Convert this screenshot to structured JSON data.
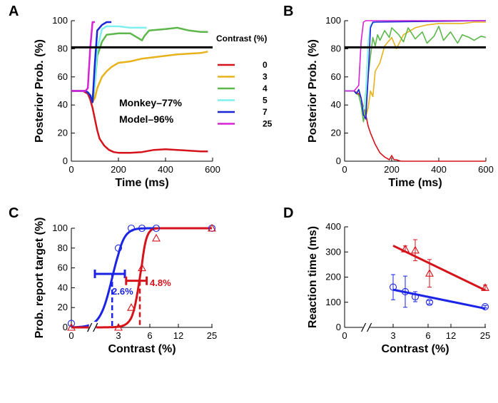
{
  "figure": {
    "colors": {
      "c0": "#d6131b",
      "c3": "#e8b21b",
      "c4": "#5cb84a",
      "c5": "#7ff0f0",
      "c7": "#1b24d6",
      "c25": "#d623d6",
      "threshold": "#000000",
      "fitB": "#1b24e6",
      "fitR": "#d6131b"
    }
  },
  "chart_data": [
    {
      "panel": "A",
      "type": "line",
      "xlabel": "Time (ms)",
      "ylabel": "Posterior Prob. (%)",
      "xlim": [
        0,
        600
      ],
      "ylim": [
        0,
        100
      ],
      "xticks": [
        "0",
        "200",
        "400",
        "600"
      ],
      "yticks": [
        "0",
        "20",
        "40",
        "60",
        "80",
        "100"
      ],
      "threshold": 81,
      "legend_title": "Contrast (%)",
      "annotations": [
        "Monkey–77%",
        "Model–96%"
      ],
      "series": [
        {
          "name": "0",
          "color_key": "c0",
          "x": [
            0,
            50,
            60,
            70,
            80,
            90,
            100,
            110,
            120,
            140,
            160,
            180,
            200,
            250,
            300,
            350,
            400,
            450,
            500,
            550,
            580
          ],
          "y": [
            50,
            50,
            49,
            48,
            44,
            38,
            30,
            22,
            16,
            11,
            8,
            6.5,
            6,
            6,
            6.5,
            8,
            8.5,
            8,
            7.5,
            7,
            7
          ]
        },
        {
          "name": "3",
          "color_key": "c3",
          "x": [
            0,
            60,
            70,
            80,
            90,
            100,
            110,
            130,
            150,
            170,
            200,
            250,
            300,
            350,
            400,
            450,
            500,
            550,
            580
          ],
          "y": [
            50,
            50,
            49,
            47,
            42,
            45,
            52,
            60,
            64,
            67,
            70,
            71,
            73,
            74,
            75,
            76,
            76.5,
            77,
            78
          ]
        },
        {
          "name": "4",
          "color_key": "c4",
          "x": [
            0,
            60,
            70,
            80,
            90,
            100,
            110,
            130,
            150,
            200,
            250,
            300,
            310,
            330,
            400,
            450,
            500,
            550,
            580
          ],
          "y": [
            50,
            50,
            49,
            47,
            42,
            55,
            75,
            85,
            90,
            91,
            91,
            86,
            89,
            93,
            94,
            95,
            93,
            92,
            92
          ]
        },
        {
          "name": "5",
          "color_key": "c5",
          "x": [
            0,
            60,
            70,
            80,
            90,
            100,
            110,
            130,
            150,
            200,
            250,
            300,
            320
          ],
          "y": [
            50,
            50,
            49,
            47,
            45,
            55,
            80,
            94,
            96,
            96,
            95,
            95,
            95
          ]
        },
        {
          "name": "7",
          "color_key": "c7",
          "x": [
            0,
            60,
            70,
            80,
            90,
            100,
            110,
            130,
            150,
            170
          ],
          "y": [
            50,
            50,
            49,
            47,
            42,
            70,
            93,
            97,
            99,
            99
          ]
        },
        {
          "name": "25",
          "color_key": "c25",
          "x": [
            0,
            50,
            60,
            70,
            80,
            90,
            100
          ],
          "y": [
            50,
            50,
            50,
            52,
            80,
            99,
            99
          ]
        }
      ]
    },
    {
      "panel": "B",
      "type": "line",
      "xlabel": "Time (ms)",
      "ylabel": "Posterior Prob. (%)",
      "xlim": [
        0,
        600
      ],
      "ylim": [
        0,
        100
      ],
      "xticks": [
        "0",
        "200",
        "400",
        "600"
      ],
      "yticks": [
        "0",
        "20",
        "40",
        "60",
        "80",
        "100"
      ],
      "threshold": 81,
      "series": [
        {
          "name": "0",
          "color_key": "c0",
          "x": [
            0,
            40,
            50,
            60,
            70,
            80,
            90,
            100,
            110,
            130,
            150,
            170,
            180,
            190,
            200,
            210,
            220,
            240,
            300,
            400,
            500,
            600
          ],
          "y": [
            50,
            50,
            49,
            48,
            45,
            38,
            33,
            25,
            20,
            12,
            6,
            3,
            2,
            1,
            4,
            1,
            1,
            0,
            0,
            0,
            0,
            0
          ]
        },
        {
          "name": "3",
          "color_key": "c3",
          "x": [
            0,
            40,
            50,
            60,
            70,
            80,
            90,
            100,
            110,
            120,
            130,
            150,
            170,
            200,
            220,
            250,
            280,
            300,
            350,
            400,
            450,
            500,
            550,
            600
          ],
          "y": [
            50,
            50,
            48,
            51,
            45,
            36,
            32,
            38,
            50,
            46,
            64,
            70,
            82,
            88,
            80,
            90,
            93,
            95,
            97,
            98,
            98,
            98,
            99,
            99
          ]
        },
        {
          "name": "4",
          "color_key": "c4",
          "x": [
            0,
            40,
            50,
            60,
            70,
            80,
            90,
            100,
            110,
            120,
            130,
            140,
            150,
            170,
            190,
            200,
            230,
            250,
            270,
            300,
            330,
            350,
            380,
            400,
            420,
            450,
            480,
            500,
            530,
            550,
            580,
            600
          ],
          "y": [
            50,
            50,
            48,
            47,
            40,
            28,
            38,
            60,
            75,
            88,
            82,
            90,
            86,
            93,
            88,
            95,
            90,
            85,
            95,
            87,
            92,
            84,
            89,
            96,
            86,
            92,
            84,
            90,
            88,
            86,
            89,
            88
          ]
        },
        {
          "name": "5",
          "color_key": "c5",
          "x": [
            0,
            40,
            50,
            60,
            70,
            80,
            90,
            100,
            110,
            130,
            150,
            600
          ],
          "y": [
            50,
            50,
            48,
            51,
            45,
            35,
            50,
            85,
            97,
            99,
            100,
            100
          ]
        },
        {
          "name": "7",
          "color_key": "c7",
          "x": [
            0,
            40,
            50,
            60,
            70,
            80,
            90,
            100,
            110,
            120,
            600
          ],
          "y": [
            50,
            50,
            48,
            51,
            45,
            33,
            30,
            60,
            95,
            99,
            100
          ]
        },
        {
          "name": "25",
          "color_key": "c25",
          "x": [
            0,
            40,
            50,
            60,
            70,
            80,
            90,
            600
          ],
          "y": [
            50,
            50,
            52,
            54,
            85,
            99,
            100,
            100
          ]
        }
      ]
    },
    {
      "panel": "C",
      "type": "scatter",
      "xlabel": "Contrast (%)",
      "ylabel": "Prob. report target (%)",
      "ylim": [
        0,
        100
      ],
      "xticks": [
        "0",
        "3",
        "6",
        "12",
        "25"
      ],
      "yticks": [
        "0",
        "20",
        "40",
        "60",
        "80",
        "100"
      ],
      "series": [
        {
          "name": "blue",
          "color_key": "fitB",
          "marker": "circle",
          "x": [
            0,
            3,
            4,
            5,
            7,
            25
          ],
          "y": [
            4,
            80,
            100,
            100,
            100,
            100
          ]
        },
        {
          "name": "red",
          "color_key": "fitR",
          "marker": "triangle",
          "x": [
            0,
            3,
            4,
            5,
            7,
            25
          ],
          "y": [
            0,
            0,
            20,
            60,
            90,
            100
          ]
        }
      ],
      "thresholds": [
        {
          "label": "2.6%",
          "x": 2.6,
          "color_key": "fitB",
          "ci": [
            1.5,
            3.5
          ],
          "ci_y": 54
        },
        {
          "label": "4.8%",
          "x": 4.8,
          "color_key": "fitR",
          "ci": [
            3.6,
            5.6
          ],
          "ci_y": 47
        }
      ]
    },
    {
      "panel": "D",
      "type": "scatter",
      "xlabel": "Contrast (%)",
      "ylabel": "Reaction time (ms)",
      "ylim": [
        0,
        400
      ],
      "xticks": [
        "0",
        "3",
        "6",
        "12",
        "25"
      ],
      "yticks": [
        "0",
        "100",
        "200",
        "300",
        "400"
      ],
      "series": [
        {
          "name": "blue",
          "color_key": "fitB",
          "marker": "circle",
          "x": [
            3,
            4,
            5,
            7,
            25
          ],
          "y": [
            160,
            142,
            122,
            100,
            82
          ],
          "err": [
            50,
            62,
            20,
            7,
            5
          ]
        },
        {
          "name": "red",
          "color_key": "fitR",
          "marker": "triangle",
          "x": [
            4,
            5,
            7,
            25
          ],
          "y": [
            312,
            307,
            215,
            158
          ],
          "err": [
            12,
            42,
            55,
            10
          ]
        }
      ],
      "fits": [
        {
          "name": "blue-fit",
          "color_key": "fitB",
          "x": [
            3,
            25
          ],
          "y": [
            150,
            75
          ]
        },
        {
          "name": "red-fit",
          "color_key": "fitR",
          "x": [
            3,
            25
          ],
          "y": [
            325,
            148
          ]
        }
      ]
    }
  ]
}
